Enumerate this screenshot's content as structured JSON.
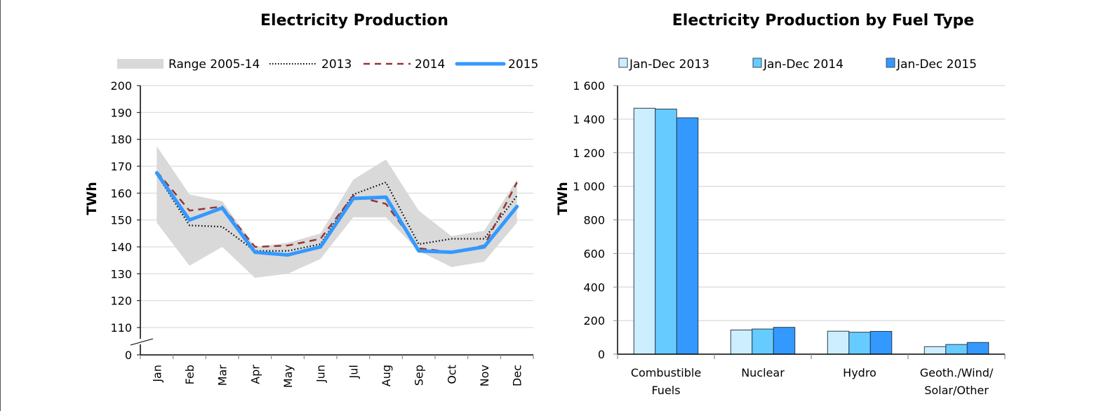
{
  "chart_data": [
    {
      "type": "line",
      "title": "Electricity Production",
      "xlabel": "",
      "ylabel": "TWh",
      "ylim": [
        110,
        200
      ],
      "y_axis_break": true,
      "y_ticks": [
        "200",
        "190",
        "180",
        "170",
        "160",
        "150",
        "140",
        "130",
        "120",
        "110",
        "0"
      ],
      "y_tick_values": [
        200,
        190,
        180,
        170,
        160,
        150,
        140,
        130,
        120,
        110
      ],
      "categories": [
        "Jan",
        "Feb",
        "Mar",
        "Apr",
        "May",
        "Jun",
        "Jul",
        "Aug",
        "Sep",
        "Oct",
        "Nov",
        "Dec"
      ],
      "grid": true,
      "legend_position": "top",
      "range": {
        "name": "Range 2005-14",
        "color": "#d9d9d9",
        "max": [
          177.5,
          159.5,
          157,
          140,
          141.5,
          145,
          165,
          172.5,
          153.5,
          144,
          146,
          165
        ],
        "min": [
          149,
          133,
          140,
          128.5,
          130,
          135.5,
          151,
          151,
          138.5,
          132.5,
          134.5,
          149
        ]
      },
      "series": [
        {
          "name": "2013",
          "style": "dotted",
          "color": "#000000",
          "values": [
            167,
            148,
            147.5,
            138.5,
            138.5,
            141,
            159.5,
            164,
            141,
            143,
            143,
            159
          ]
        },
        {
          "name": "2014",
          "style": "dashed",
          "color": "#993333",
          "values": [
            168,
            153.5,
            155,
            140,
            140.5,
            143,
            159,
            156,
            139.5,
            138,
            140.5,
            164
          ]
        },
        {
          "name": "2015",
          "style": "solid",
          "color": "#3399ff",
          "values": [
            167.5,
            150,
            154.5,
            138,
            137,
            140,
            158,
            158.5,
            138.5,
            138,
            140,
            155
          ]
        }
      ]
    },
    {
      "type": "bar",
      "title": "Electricity Production by Fuel Type",
      "xlabel": "",
      "ylabel": "TWh",
      "ylim": [
        0,
        1600
      ],
      "y_ticks": [
        "1 600",
        "1 400",
        "1 200",
        "1 000",
        "800",
        "600",
        "400",
        "200",
        "0"
      ],
      "y_tick_values": [
        1600,
        1400,
        1200,
        1000,
        800,
        600,
        400,
        200,
        0
      ],
      "categories": [
        [
          "Combustible",
          "Fuels"
        ],
        [
          "Nuclear"
        ],
        [
          "Hydro"
        ],
        [
          "Geoth./Wind/",
          "Solar/Other"
        ]
      ],
      "grid": true,
      "legend_position": "top",
      "series": [
        {
          "name": "Jan-Dec 2013",
          "color": "#cceeff",
          "values": [
            1465,
            144,
            137,
            45
          ]
        },
        {
          "name": "Jan-Dec 2014",
          "color": "#66ccff",
          "values": [
            1460,
            150,
            131,
            58
          ]
        },
        {
          "name": "Jan-Dec 2015",
          "color": "#3399ff",
          "values": [
            1408,
            160,
            136,
            70
          ]
        }
      ]
    }
  ]
}
